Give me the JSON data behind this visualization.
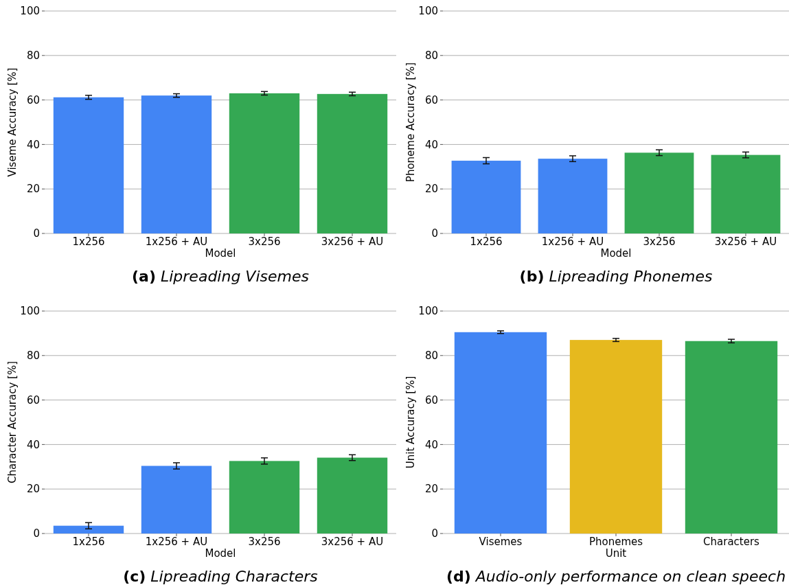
{
  "chart_data": [
    {
      "type": "bar",
      "title": "(a) Lipreading Visemes",
      "xlabel": "Model",
      "ylabel": "Viseme Accuracy [%]",
      "categories": [
        "1x256",
        "1x256 + AU",
        "3x256",
        "3x256 + AU"
      ],
      "values": [
        61.2,
        62.0,
        63.0,
        62.7
      ],
      "errors": [
        0.9,
        0.8,
        0.8,
        0.8
      ],
      "colors": [
        "#4285f4",
        "#4285f4",
        "#34a853",
        "#34a853"
      ],
      "ylim": [
        0,
        100
      ],
      "yticks": [
        0,
        20,
        40,
        60,
        80,
        100
      ],
      "grid": "y"
    },
    {
      "type": "bar",
      "title": "(b) Lipreading Phonemes",
      "xlabel": "Model",
      "ylabel": "Phoneme Accuracy [%]",
      "categories": [
        "1x256",
        "1x256 + AU",
        "3x256",
        "3x256 + AU"
      ],
      "values": [
        32.7,
        33.6,
        36.3,
        35.3
      ],
      "errors": [
        1.4,
        1.3,
        1.3,
        1.3
      ],
      "colors": [
        "#4285f4",
        "#4285f4",
        "#34a853",
        "#34a853"
      ],
      "ylim": [
        0,
        100
      ],
      "yticks": [
        0,
        20,
        40,
        60,
        80,
        100
      ],
      "grid": "y"
    },
    {
      "type": "bar",
      "title": "(c) Lipreading Characters",
      "xlabel": "Model",
      "ylabel": "Character Accuracy [%]",
      "categories": [
        "1x256",
        "1x256 + AU",
        "3x256",
        "3x256 + AU"
      ],
      "values": [
        3.5,
        30.4,
        32.6,
        34.1
      ],
      "errors": [
        1.4,
        1.4,
        1.4,
        1.3
      ],
      "colors": [
        "#4285f4",
        "#4285f4",
        "#34a853",
        "#34a853"
      ],
      "ylim": [
        0,
        100
      ],
      "yticks": [
        0,
        20,
        40,
        60,
        80,
        100
      ],
      "grid": "y"
    },
    {
      "type": "bar",
      "title": "(d) Audio-only performance on clean speech",
      "xlabel": "Unit",
      "ylabel": "Unit Accuracy [%]",
      "categories": [
        "Visemes",
        "Phonemes",
        "Characters"
      ],
      "values": [
        90.5,
        87.0,
        86.5
      ],
      "errors": [
        0.6,
        0.7,
        0.8
      ],
      "colors": [
        "#4285f4",
        "#e6b91e",
        "#34a853"
      ],
      "ylim": [
        0,
        100
      ],
      "yticks": [
        0,
        20,
        40,
        60,
        80,
        100
      ],
      "grid": "y"
    }
  ]
}
